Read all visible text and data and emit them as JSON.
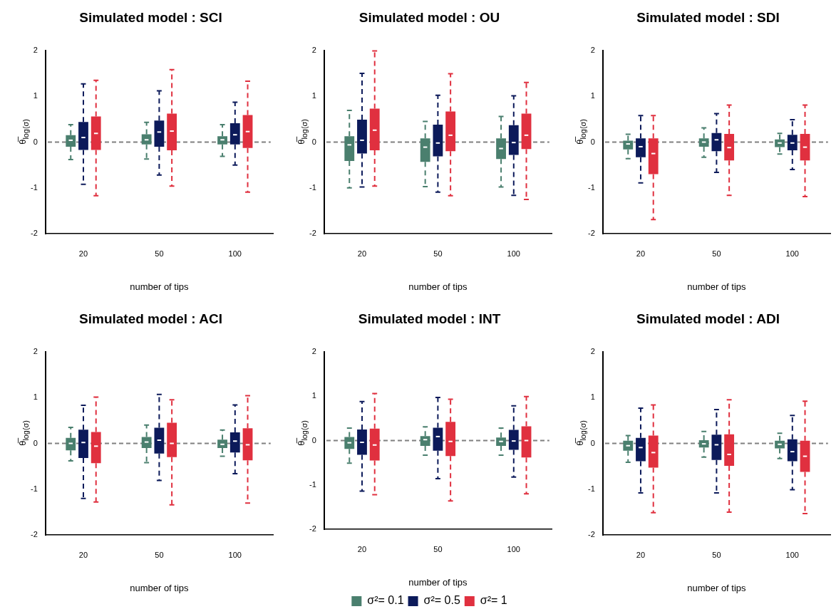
{
  "chart_data": [
    {
      "type": "box",
      "title": "Simulated model : SCI",
      "xlabel": "number of tips",
      "ylabel": "θ̅$_{log(σ)}$",
      "categories": [
        "20",
        "50",
        "100"
      ],
      "ylim": [
        -2,
        2
      ],
      "yticks": [
        -2,
        -1,
        0,
        1,
        2
      ],
      "grid": false,
      "ref_lines": [
        {
          "axis": "y",
          "value": 0,
          "color": "#808080",
          "line_style": "dashed"
        }
      ],
      "series": [
        {
          "color": "#4a7f6e",
          "boxes": [
            {
              "low": -0.38,
              "q1": -0.1,
              "median": 0.04,
              "q3": 0.15,
              "high": 0.38
            },
            {
              "low": -0.37,
              "q1": -0.05,
              "median": 0.05,
              "q3": 0.17,
              "high": 0.43
            },
            {
              "low": -0.31,
              "q1": -0.05,
              "median": 0.05,
              "q3": 0.13,
              "high": 0.38
            }
          ]
        },
        {
          "color": "#0c1a5a",
          "boxes": [
            {
              "low": -0.92,
              "q1": -0.17,
              "median": 0.1,
              "q3": 0.44,
              "high": 1.27
            },
            {
              "low": -0.72,
              "q1": -0.1,
              "median": 0.22,
              "q3": 0.47,
              "high": 1.12
            },
            {
              "low": -0.5,
              "q1": -0.05,
              "median": 0.16,
              "q3": 0.41,
              "high": 0.87
            }
          ]
        },
        {
          "color": "#e0303f",
          "boxes": [
            {
              "low": -1.17,
              "q1": -0.17,
              "median": 0.19,
              "q3": 0.56,
              "high": 1.35
            },
            {
              "low": -0.96,
              "q1": -0.18,
              "median": 0.24,
              "q3": 0.62,
              "high": 1.58
            },
            {
              "low": -1.09,
              "q1": -0.13,
              "median": 0.23,
              "q3": 0.59,
              "high": 1.33
            }
          ]
        }
      ]
    },
    {
      "type": "box",
      "title": "Simulated model : OU",
      "xlabel": "number of tips",
      "ylabel": "θ̅$_{log(σ)}$",
      "categories": [
        "20",
        "50",
        "100"
      ],
      "ylim": [
        -2,
        2
      ],
      "yticks": [
        -2,
        -1,
        0,
        1,
        2
      ],
      "grid": false,
      "ref_lines": [
        {
          "axis": "y",
          "value": 0,
          "color": "#808080",
          "line_style": "dashed"
        }
      ],
      "series": [
        {
          "color": "#4a7f6e",
          "boxes": [
            {
              "low": -1.0,
              "q1": -0.41,
              "median": -0.06,
              "q3": 0.13,
              "high": 0.69
            },
            {
              "low": -0.97,
              "q1": -0.43,
              "median": -0.11,
              "q3": 0.08,
              "high": 0.45
            },
            {
              "low": -0.98,
              "q1": -0.37,
              "median": -0.14,
              "q3": 0.08,
              "high": 0.56
            }
          ]
        },
        {
          "color": "#0c1a5a",
          "boxes": [
            {
              "low": -0.98,
              "q1": -0.25,
              "median": 0.04,
              "q3": 0.49,
              "high": 1.5
            },
            {
              "low": -1.09,
              "q1": -0.31,
              "median": -0.02,
              "q3": 0.38,
              "high": 1.02
            },
            {
              "low": -1.16,
              "q1": -0.28,
              "median": -0.01,
              "q3": 0.37,
              "high": 1.01
            }
          ]
        },
        {
          "color": "#e0303f",
          "boxes": [
            {
              "low": -0.96,
              "q1": -0.18,
              "median": 0.26,
              "q3": 0.73,
              "high": 1.99
            },
            {
              "low": -1.17,
              "q1": -0.2,
              "median": 0.15,
              "q3": 0.67,
              "high": 1.49
            },
            {
              "low": -1.25,
              "q1": -0.15,
              "median": 0.15,
              "q3": 0.62,
              "high": 1.3
            }
          ]
        }
      ]
    },
    {
      "type": "box",
      "title": "Simulated model : SDI",
      "xlabel": "number of tips",
      "ylabel": "θ̅$_{log(σ)}$",
      "categories": [
        "20",
        "50",
        "100"
      ],
      "ylim": [
        -2,
        2
      ],
      "yticks": [
        -2,
        -1,
        0,
        1,
        2
      ],
      "grid": false,
      "ref_lines": [
        {
          "axis": "y",
          "value": 0,
          "color": "#808080",
          "line_style": "dashed"
        }
      ],
      "series": [
        {
          "color": "#4a7f6e",
          "boxes": [
            {
              "low": -0.36,
              "q1": -0.16,
              "median": -0.04,
              "q3": 0.03,
              "high": 0.17
            },
            {
              "low": -0.33,
              "q1": -0.1,
              "median": 0.0,
              "q3": 0.08,
              "high": 0.31
            },
            {
              "low": -0.26,
              "q1": -0.11,
              "median": -0.02,
              "q3": 0.06,
              "high": 0.19
            }
          ]
        },
        {
          "color": "#0c1a5a",
          "boxes": [
            {
              "low": -0.89,
              "q1": -0.33,
              "median": -0.1,
              "q3": 0.08,
              "high": 0.58
            },
            {
              "low": -0.66,
              "q1": -0.2,
              "median": 0.05,
              "q3": 0.2,
              "high": 0.62
            },
            {
              "low": -0.6,
              "q1": -0.18,
              "median": -0.02,
              "q3": 0.16,
              "high": 0.49
            }
          ]
        },
        {
          "color": "#e0303f",
          "boxes": [
            {
              "low": -1.69,
              "q1": -0.7,
              "median": -0.25,
              "q3": 0.08,
              "high": 0.58
            },
            {
              "low": -1.16,
              "q1": -0.4,
              "median": -0.12,
              "q3": 0.18,
              "high": 0.81
            },
            {
              "low": -1.19,
              "q1": -0.4,
              "median": -0.11,
              "q3": 0.18,
              "high": 0.81
            }
          ]
        }
      ]
    },
    {
      "type": "box",
      "title": "Simulated model : ACI",
      "xlabel": "number of tips",
      "ylabel": "θ̅$_{log(σ)}$",
      "categories": [
        "20",
        "50",
        "100"
      ],
      "ylim": [
        -2,
        2
      ],
      "yticks": [
        -2,
        -1,
        0,
        1,
        2
      ],
      "grid": false,
      "ref_lines": [
        {
          "axis": "y",
          "value": 0,
          "color": "#808080",
          "line_style": "dashed"
        }
      ],
      "series": [
        {
          "color": "#4a7f6e",
          "boxes": [
            {
              "low": -0.38,
              "q1": -0.15,
              "median": 0.0,
              "q3": 0.12,
              "high": 0.35
            },
            {
              "low": -0.42,
              "q1": -0.1,
              "median": 0.03,
              "q3": 0.14,
              "high": 0.4
            },
            {
              "low": -0.28,
              "q1": -0.1,
              "median": -0.02,
              "q3": 0.08,
              "high": 0.29
            }
          ]
        },
        {
          "color": "#0c1a5a",
          "boxes": [
            {
              "low": -1.2,
              "q1": -0.32,
              "median": 0.02,
              "q3": 0.3,
              "high": 0.83
            },
            {
              "low": -0.81,
              "q1": -0.22,
              "median": 0.07,
              "q3": 0.34,
              "high": 1.07
            },
            {
              "low": -0.66,
              "q1": -0.2,
              "median": 0.05,
              "q3": 0.24,
              "high": 0.84
            }
          ]
        },
        {
          "color": "#e0303f",
          "boxes": [
            {
              "low": -1.28,
              "q1": -0.43,
              "median": -0.06,
              "q3": 0.25,
              "high": 1.01
            },
            {
              "low": -1.34,
              "q1": -0.3,
              "median": 0.0,
              "q3": 0.45,
              "high": 0.95
            },
            {
              "low": -1.3,
              "q1": -0.37,
              "median": -0.03,
              "q3": 0.33,
              "high": 1.04
            }
          ]
        }
      ]
    },
    {
      "type": "box",
      "title": "Simulated model : INT",
      "xlabel": "number of tips",
      "ylabel": "θ̅$_{log(σ)}$",
      "categories": [
        "20",
        "50",
        "100"
      ],
      "ylim": [
        -2,
        2
      ],
      "yticks": [
        -2,
        -1,
        0,
        1,
        2
      ],
      "grid": false,
      "legend": "bottom",
      "ref_lines": [
        {
          "axis": "y",
          "value": 0,
          "color": "#808080",
          "line_style": "dashed"
        }
      ],
      "series": [
        {
          "name": "σ²= 0.1",
          "color": "#4a7f6e",
          "boxes": [
            {
              "low": -0.51,
              "q1": -0.19,
              "median": -0.05,
              "q3": 0.08,
              "high": 0.28
            },
            {
              "low": -0.33,
              "q1": -0.12,
              "median": 0.02,
              "q3": 0.1,
              "high": 0.31
            },
            {
              "low": -0.33,
              "q1": -0.12,
              "median": -0.02,
              "q3": 0.07,
              "high": 0.28
            }
          ]
        },
        {
          "name": "σ²= 0.5",
          "color": "#0c1a5a",
          "boxes": [
            {
              "low": -1.14,
              "q1": -0.32,
              "median": -0.04,
              "q3": 0.25,
              "high": 0.88
            },
            {
              "low": -0.86,
              "q1": -0.23,
              "median": 0.09,
              "q3": 0.29,
              "high": 0.97
            },
            {
              "low": -0.82,
              "q1": -0.21,
              "median": -0.01,
              "q3": 0.24,
              "high": 0.78
            }
          ]
        },
        {
          "name": "σ²= 1",
          "color": "#e0303f",
          "boxes": [
            {
              "low": -1.22,
              "q1": -0.45,
              "median": -0.1,
              "q3": 0.27,
              "high": 1.06
            },
            {
              "low": -1.36,
              "q1": -0.35,
              "median": -0.02,
              "q3": 0.42,
              "high": 0.93
            },
            {
              "low": -1.2,
              "q1": -0.38,
              "median": 0.0,
              "q3": 0.32,
              "high": 0.99
            }
          ]
        }
      ]
    },
    {
      "type": "box",
      "title": "Simulated model : ADI",
      "xlabel": "number of tips",
      "ylabel": "θ̅$_{log(σ)}$",
      "categories": [
        "20",
        "50",
        "100"
      ],
      "ylim": [
        -2,
        2
      ],
      "yticks": [
        -2,
        -1,
        0,
        1,
        2
      ],
      "grid": false,
      "ref_lines": [
        {
          "axis": "y",
          "value": 0,
          "color": "#808080",
          "line_style": "dashed"
        }
      ],
      "series": [
        {
          "color": "#4a7f6e",
          "boxes": [
            {
              "low": -0.41,
              "q1": -0.16,
              "median": -0.05,
              "q3": 0.06,
              "high": 0.17
            },
            {
              "low": -0.3,
              "q1": -0.09,
              "median": -0.01,
              "q3": 0.07,
              "high": 0.26
            },
            {
              "low": -0.33,
              "q1": -0.11,
              "median": -0.02,
              "q3": 0.06,
              "high": 0.22
            }
          ]
        },
        {
          "color": "#0c1a5a",
          "boxes": [
            {
              "low": -1.08,
              "q1": -0.39,
              "median": -0.09,
              "q3": 0.12,
              "high": 0.77
            },
            {
              "low": -1.08,
              "q1": -0.36,
              "median": -0.03,
              "q3": 0.19,
              "high": 0.74
            },
            {
              "low": -1.01,
              "q1": -0.39,
              "median": -0.18,
              "q3": 0.09,
              "high": 0.61
            }
          ]
        },
        {
          "color": "#e0303f",
          "boxes": [
            {
              "low": -1.51,
              "q1": -0.53,
              "median": -0.2,
              "q3": 0.17,
              "high": 0.84
            },
            {
              "low": -1.5,
              "q1": -0.49,
              "median": -0.24,
              "q3": 0.2,
              "high": 0.95
            },
            {
              "low": -1.53,
              "q1": -0.62,
              "median": -0.28,
              "q3": 0.06,
              "high": 0.92
            }
          ]
        }
      ]
    }
  ]
}
